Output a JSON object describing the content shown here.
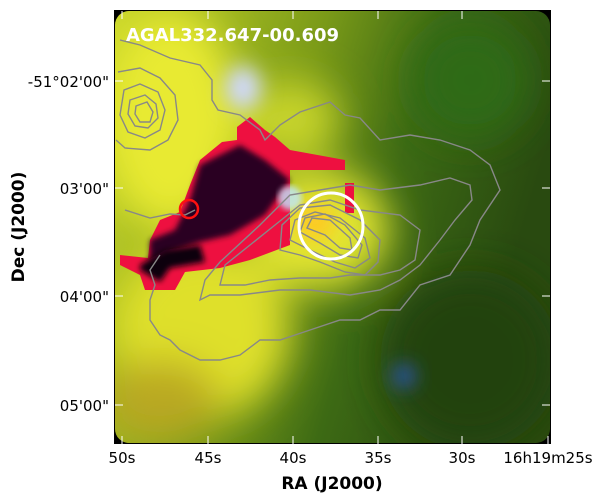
{
  "figure": {
    "field_label": "AGAL332.647-00.609",
    "x_axis": {
      "title": "RA (J2000)",
      "tick_labels": [
        "50s",
        "45s",
        "40s",
        "35s",
        "30s",
        "16h19m25s"
      ]
    },
    "y_axis": {
      "title": "Dec (J2000)",
      "tick_labels": [
        "-51°02'00\"",
        "03'00\"",
        "04'00\"",
        "05'00\""
      ]
    },
    "markers": {
      "white_circle_color": "#ffffff",
      "red_circle_color": "#ff1010",
      "contour_color": "#888888"
    }
  }
}
